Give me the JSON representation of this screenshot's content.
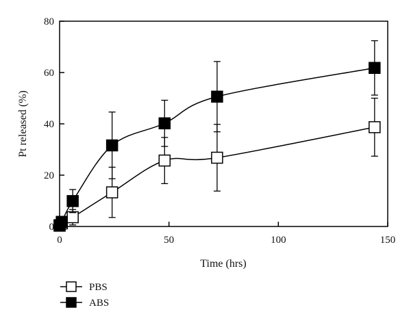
{
  "chart_data": {
    "type": "line",
    "title": "",
    "xlabel": "Time (hrs)",
    "ylabel": "Pt released (%)",
    "xlim": [
      0,
      150
    ],
    "ylim": [
      0,
      80
    ],
    "x_ticks": [
      0,
      50,
      100,
      150
    ],
    "y_ticks": [
      0,
      20,
      40,
      60,
      80
    ],
    "grid": false,
    "legend_position": "bottom-left",
    "series": [
      {
        "name": "PBS",
        "marker": "open-square",
        "color": "#000000",
        "x": [
          0,
          1,
          6,
          24,
          48,
          72,
          144
        ],
        "y": [
          0.3,
          1.2,
          3.6,
          13.3,
          25.7,
          26.8,
          38.7
        ],
        "err": [
          0,
          0.5,
          3.0,
          9.8,
          9.0,
          13.0,
          11.3
        ]
      },
      {
        "name": "ABS",
        "marker": "filled-square",
        "color": "#000000",
        "x": [
          0,
          1,
          6,
          24,
          48,
          72,
          144
        ],
        "y": [
          0.5,
          1.8,
          9.9,
          31.6,
          40.2,
          50.6,
          61.8
        ],
        "err": [
          0,
          0.5,
          4.5,
          13.0,
          9.0,
          13.7,
          10.6
        ]
      }
    ]
  }
}
